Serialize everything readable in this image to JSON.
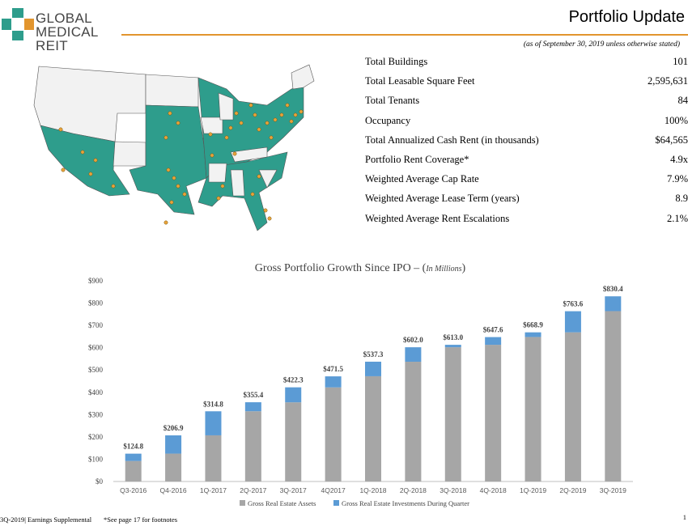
{
  "brand": {
    "name_line1": "GLOBAL",
    "name_line2": "MEDICAL REIT",
    "accent_color": "#e2952e",
    "teal_color": "#2e9d8c"
  },
  "header": {
    "title": "Portfolio Update",
    "subtitle": "(as of September 30, 2019 unless otherwise stated)"
  },
  "map": {
    "icon": "us-map-icon",
    "fill_color": "#2e9d8c",
    "marker_color": "#e8a23a"
  },
  "stats": [
    {
      "label": "Total Buildings",
      "value": "101"
    },
    {
      "label": "Total Leasable Square Feet",
      "value": "2,595,631"
    },
    {
      "label": "Total Tenants",
      "value": "84"
    },
    {
      "label": "Occupancy",
      "value": "100%"
    },
    {
      "label": "Total Annualized Cash Rent (in thousands)",
      "value": "$64,565"
    },
    {
      "label": "Portfolio Rent Coverage*",
      "value": "4.9x"
    },
    {
      "label": "Weighted Average Cap Rate",
      "value": "7.9%"
    },
    {
      "label": "Weighted Average Lease Term (years)",
      "value": "8.9"
    },
    {
      "label": "Weighted Average Rent Escalations",
      "value": "2.1%"
    }
  ],
  "chart_data": {
    "type": "bar",
    "stacked": true,
    "title": "Gross Portfolio Growth Since IPO – (",
    "title_units": "In Millions",
    "title_close": ")",
    "categories": [
      "Q3-2016",
      "Q4-2016",
      "1Q-2017",
      "2Q-2017",
      "3Q-2017",
      "4Q2017",
      "1Q-2018",
      "2Q-2018",
      "3Q-2018",
      "4Q-2018",
      "1Q-2019",
      "2Q-2019",
      "3Q-2019"
    ],
    "series": [
      {
        "name": "Gross Real Estate Assets",
        "color": "#a6a6a6",
        "values": [
          92,
          125,
          207,
          315,
          355,
          422,
          472,
          537,
          602,
          613,
          648,
          669,
          764
        ]
      },
      {
        "name": "Gross Real Estate Investments During Quarter",
        "color": "#5b9bd5",
        "values": [
          32.8,
          81.9,
          107.8,
          40.4,
          67.3,
          49.5,
          65.3,
          65.0,
          11.0,
          34.6,
          20.9,
          94.6,
          66.4
        ]
      }
    ],
    "totals": [
      "$124.8",
      "$206.9",
      "$314.8",
      "$355.4",
      "$422.3",
      "$471.5",
      "$537.3",
      "$602.0",
      "$613.0",
      "$647.6",
      "$668.9",
      "$763.6",
      "$830.4"
    ],
    "y_ticks": [
      "$0",
      "$100",
      "$200",
      "$300",
      "$400",
      "$500",
      "$600",
      "$700",
      "$800",
      "$900"
    ],
    "ylim": [
      0,
      900
    ],
    "legend_position": "bottom",
    "grid": false
  },
  "footer": {
    "left": "3Q-2019| Earnings Supplemental",
    "note": "*See page 17 for footnotes",
    "page": "1"
  }
}
